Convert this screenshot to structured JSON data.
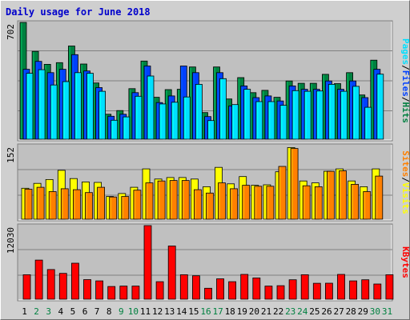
{
  "title": "Daily usage for June 2018",
  "colors": {
    "hits": "#008040",
    "files": "#0040ff",
    "pages": "#00e0ff",
    "visits": "#ffff00",
    "sites": "#ff8000",
    "kbytes": "#ff0000",
    "weekend_label": "#008040",
    "weekday_label": "#000000",
    "panel_bg": "#c0c0c0"
  },
  "chart_data": [
    {
      "type": "bar",
      "panel": "hits-files-pages",
      "ymax_label": "702",
      "ylim": [
        0,
        702
      ],
      "side_labels": [
        "Pages",
        "Files",
        "Hits"
      ],
      "categories": [
        "1",
        "2",
        "3",
        "4",
        "5",
        "6",
        "7",
        "8",
        "9",
        "10",
        "11",
        "12",
        "13",
        "14",
        "15",
        "16",
        "17",
        "18",
        "19",
        "20",
        "21",
        "22",
        "23",
        "24",
        "25",
        "26",
        "27",
        "28",
        "29",
        "30",
        "31"
      ],
      "weekend": [
        false,
        true,
        true,
        false,
        false,
        false,
        false,
        false,
        true,
        true,
        false,
        false,
        false,
        false,
        false,
        true,
        true,
        false,
        false,
        false,
        false,
        false,
        true,
        true,
        false,
        false,
        false,
        false,
        false,
        true,
        true
      ],
      "series": [
        {
          "name": "Hits",
          "values": [
            702,
            528,
            450,
            460,
            560,
            452,
            338,
            150,
            172,
            304,
            470,
            252,
            298,
            300,
            434,
            160,
            434,
            242,
            370,
            280,
            294,
            252,
            350,
            336,
            336,
            390,
            334,
            400,
            266,
            475,
            0
          ]
        },
        {
          "name": "Files",
          "values": [
            420,
            468,
            400,
            420,
            508,
            410,
            310,
            138,
            150,
            280,
            440,
            220,
            260,
            440,
            400,
            136,
            400,
            200,
            320,
            250,
            260,
            230,
            320,
            300,
            300,
            350,
            300,
            350,
            250,
            420,
            0
          ]
        },
        {
          "name": "Pages",
          "values": [
            396,
            418,
            326,
            346,
            400,
            396,
            288,
            114,
            134,
            258,
            380,
            212,
            222,
            254,
            330,
            112,
            364,
            208,
            300,
            226,
            226,
            204,
            292,
            288,
            290,
            330,
            288,
            318,
            192,
            391,
            0
          ]
        }
      ]
    },
    {
      "type": "bar",
      "panel": "visits-sites",
      "ymax_label": "152",
      "ylim": [
        0,
        152
      ],
      "side_labels": [
        "Sites",
        "Visits"
      ],
      "categories": [
        "1",
        "2",
        "3",
        "4",
        "5",
        "6",
        "7",
        "8",
        "9",
        "10",
        "11",
        "12",
        "13",
        "14",
        "15",
        "16",
        "17",
        "18",
        "19",
        "20",
        "21",
        "22",
        "23",
        "24",
        "25",
        "26",
        "27",
        "28",
        "29",
        "30",
        "31"
      ],
      "series": [
        {
          "name": "Visits",
          "values": [
            64,
            74,
            82,
            101,
            84,
            77,
            76,
            47,
            53,
            66,
            104,
            83,
            86,
            86,
            83,
            67,
            107,
            73,
            88,
            70,
            71,
            98,
            148,
            79,
            75,
            99,
            104,
            79,
            67,
            104,
            0
          ]
        },
        {
          "name": "Sites",
          "values": [
            62,
            66,
            57,
            63,
            61,
            55,
            66,
            46,
            47,
            60,
            75,
            79,
            80,
            80,
            61,
            54,
            75,
            63,
            70,
            68,
            68,
            109,
            146,
            69,
            67,
            99,
            100,
            72,
            57,
            89,
            0
          ]
        }
      ]
    },
    {
      "type": "bar",
      "panel": "kbytes",
      "ymax_label": "12030",
      "ylim": [
        0,
        12030
      ],
      "side_labels": [
        "KBytes"
      ],
      "categories": [
        "1",
        "2",
        "3",
        "4",
        "5",
        "6",
        "7",
        "8",
        "9",
        "10",
        "11",
        "12",
        "13",
        "14",
        "15",
        "16",
        "17",
        "18",
        "19",
        "20",
        "21",
        "22",
        "23",
        "24",
        "25",
        "26",
        "27",
        "28",
        "29",
        "30",
        "31"
      ],
      "series": [
        {
          "name": "KBytes",
          "values": [
            4000,
            6400,
            4850,
            4220,
            5880,
            3200,
            3000,
            2080,
            2150,
            2150,
            12030,
            2860,
            8700,
            4000,
            3830,
            1790,
            3340,
            2860,
            4060,
            3480,
            2140,
            2210,
            3180,
            4000,
            2600,
            2610,
            4050,
            3000,
            3180,
            2480,
            4000
          ]
        }
      ]
    }
  ]
}
